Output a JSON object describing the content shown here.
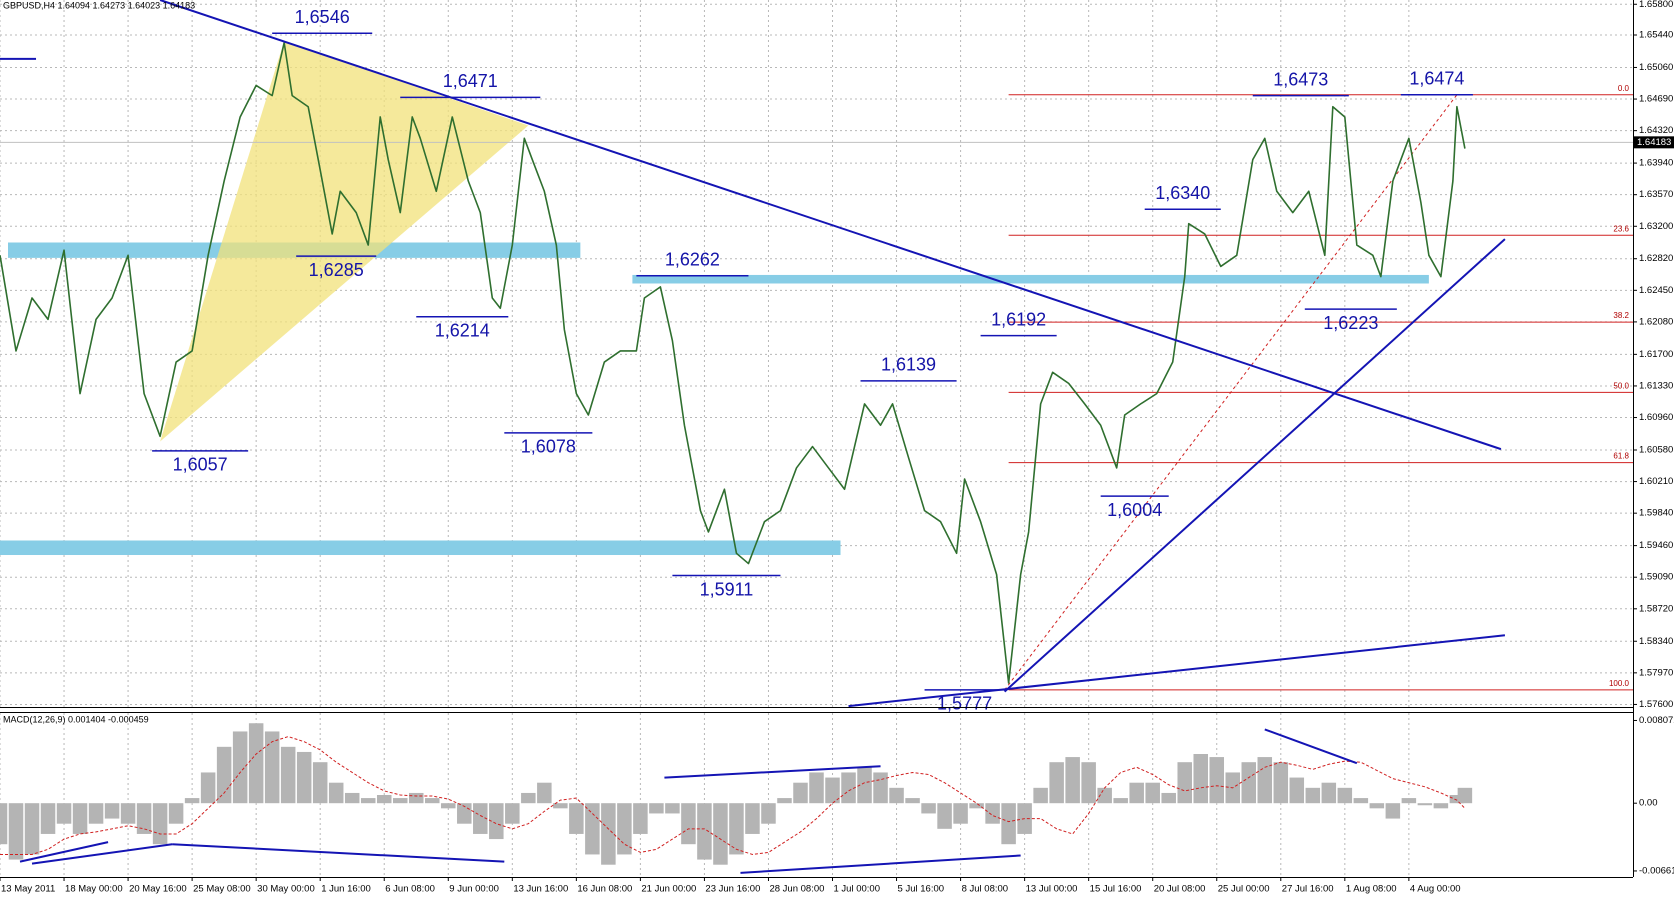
{
  "chart_data": {
    "type": "line",
    "title": "GBPUSD,H4  1.64094 1.64273 1.64023 1.64183",
    "xlim": [
      0,
      408
    ],
    "ylim": [
      1.5757,
      1.6585
    ],
    "grid": true,
    "xticks": [
      {
        "value": 0,
        "label": "13 May 2011"
      },
      {
        "value": 16,
        "label": "18 May 00:00"
      },
      {
        "value": 32,
        "label": "20 May 16:00"
      },
      {
        "value": 48,
        "label": "25 May 08:00"
      },
      {
        "value": 64,
        "label": "30 May 00:00"
      },
      {
        "value": 80,
        "label": "1 Jun 16:00"
      },
      {
        "value": 96,
        "label": "6 Jun 08:00"
      },
      {
        "value": 112,
        "label": "9 Jun 00:00"
      },
      {
        "value": 128,
        "label": "13 Jun 16:00"
      },
      {
        "value": 144,
        "label": "16 Jun 08:00"
      },
      {
        "value": 160,
        "label": "21 Jun 00:00"
      },
      {
        "value": 176,
        "label": "23 Jun 16:00"
      },
      {
        "value": 192,
        "label": "28 Jun 08:00"
      },
      {
        "value": 208,
        "label": "1 Jul 00:00"
      },
      {
        "value": 224,
        "label": "5 Jul 16:00"
      },
      {
        "value": 240,
        "label": "8 Jul 08:00"
      },
      {
        "value": 256,
        "label": "13 Jul 00:00"
      },
      {
        "value": 272,
        "label": "15 Jul 16:00"
      },
      {
        "value": 288,
        "label": "20 Jul 08:00"
      },
      {
        "value": 304,
        "label": "25 Jul 00:00"
      },
      {
        "value": 320,
        "label": "27 Jul 16:00"
      },
      {
        "value": 336,
        "label": "1 Aug 08:00"
      },
      {
        "value": 352,
        "label": "4 Aug 00:00"
      }
    ],
    "yticks": [
      {
        "value": 1.658,
        "label": "1.65800"
      },
      {
        "value": 1.6544,
        "label": "1.65440"
      },
      {
        "value": 1.6506,
        "label": "1.65060"
      },
      {
        "value": 1.6469,
        "label": "1.64690"
      },
      {
        "value": 1.6432,
        "label": "1.64320"
      },
      {
        "value": 1.6394,
        "label": "1.63940"
      },
      {
        "value": 1.6357,
        "label": "1.63570"
      },
      {
        "value": 1.632,
        "label": "1.63200"
      },
      {
        "value": 1.6282,
        "label": "1.62820"
      },
      {
        "value": 1.6245,
        "label": "1.62450"
      },
      {
        "value": 1.6208,
        "label": "1.62080"
      },
      {
        "value": 1.617,
        "label": "1.61700"
      },
      {
        "value": 1.6133,
        "label": "1.61330"
      },
      {
        "value": 1.6096,
        "label": "1.60960"
      },
      {
        "value": 1.6058,
        "label": "1.60580"
      },
      {
        "value": 1.6021,
        "label": "1.60210"
      },
      {
        "value": 1.5984,
        "label": "1.59840"
      },
      {
        "value": 1.5946,
        "label": "1.59460"
      },
      {
        "value": 1.5909,
        "label": "1.59090"
      },
      {
        "value": 1.5872,
        "label": "1.58720"
      },
      {
        "value": 1.5834,
        "label": "1.58340"
      },
      {
        "value": 1.5797,
        "label": "1.57970"
      },
      {
        "value": 1.576,
        "label": "1.57600"
      }
    ],
    "last_price": {
      "value": 1.64183,
      "label": "1.64183"
    },
    "series": [
      {
        "color": "#2f6f2f",
        "x": [
          0,
          4,
          8,
          12,
          16,
          20,
          24,
          28,
          32,
          36,
          40,
          44,
          48,
          52,
          56,
          60,
          64,
          68,
          71,
          73,
          77,
          80,
          83,
          85,
          89,
          92,
          95,
          97,
          100,
          103,
          105,
          109,
          113,
          117,
          120,
          123,
          125,
          128,
          131,
          133,
          136,
          139,
          141,
          144,
          147,
          151,
          155,
          159,
          161,
          165,
          168,
          171,
          175,
          177,
          181,
          184,
          187,
          191,
          195,
          199,
          203,
          207,
          211,
          216,
          220,
          223,
          227,
          231,
          235,
          239,
          241,
          245,
          249,
          252,
          255,
          257,
          260,
          263,
          267,
          271,
          275,
          279,
          281,
          285,
          289,
          293,
          296,
          297,
          301,
          305,
          309,
          313,
          316,
          319,
          323,
          327,
          331,
          333,
          336,
          339,
          343,
          345,
          348,
          352,
          355,
          357,
          360,
          363,
          364,
          366
        ],
        "values": [
          1.6286,
          1.6174,
          1.6236,
          1.6211,
          1.6292,
          1.6124,
          1.6211,
          1.6236,
          1.6286,
          1.6124,
          1.6074,
          1.6161,
          1.6174,
          1.6286,
          1.6373,
          1.6448,
          1.6485,
          1.6473,
          1.6535,
          1.6473,
          1.646,
          1.6386,
          1.6311,
          1.6361,
          1.6336,
          1.6298,
          1.6448,
          1.6398,
          1.6336,
          1.6448,
          1.6423,
          1.6361,
          1.6448,
          1.6373,
          1.6336,
          1.6236,
          1.6224,
          1.6298,
          1.6423,
          1.6398,
          1.6361,
          1.6298,
          1.6199,
          1.6124,
          1.6099,
          1.6161,
          1.6174,
          1.6174,
          1.6236,
          1.6249,
          1.6186,
          1.6087,
          1.5987,
          1.5962,
          1.6012,
          1.5937,
          1.5925,
          1.5974,
          1.5987,
          1.6037,
          1.6062,
          1.6037,
          1.6012,
          1.6112,
          1.6087,
          1.6112,
          1.6049,
          1.5987,
          1.5974,
          1.5937,
          1.6024,
          1.5974,
          1.5912,
          1.5785,
          1.5912,
          1.5962,
          1.6112,
          1.6149,
          1.6136,
          1.6112,
          1.6087,
          1.6037,
          1.6099,
          1.6112,
          1.6124,
          1.6161,
          1.6261,
          1.6323,
          1.6311,
          1.6273,
          1.6286,
          1.6398,
          1.6423,
          1.6361,
          1.6336,
          1.6361,
          1.6286,
          1.646,
          1.6448,
          1.6298,
          1.6286,
          1.6261,
          1.6373,
          1.6423,
          1.6348,
          1.6286,
          1.6261,
          1.6373,
          1.646,
          1.6411
        ]
      }
    ],
    "swing_highs": [
      {
        "label": "1,6546",
        "value": 1.6546,
        "x": [
          68,
          93
        ]
      },
      {
        "label": "1,6471",
        "value": 1.6471,
        "x": [
          100,
          135
        ]
      },
      {
        "label": "1,6262",
        "value": 1.6262,
        "x": [
          159,
          187
        ]
      },
      {
        "label": "1,6139",
        "value": 1.6139,
        "x": [
          215,
          239
        ]
      },
      {
        "label": "1,6192",
        "value": 1.6192,
        "x": [
          245,
          264
        ]
      },
      {
        "label": "1,6340",
        "value": 1.634,
        "x": [
          286,
          305
        ]
      },
      {
        "label": "1,6473",
        "value": 1.6473,
        "x": [
          313,
          337
        ]
      },
      {
        "label": "1,6474",
        "value": 1.6474,
        "x": [
          350,
          368
        ]
      }
    ],
    "swing_lows": [
      {
        "label": "1,6057",
        "value": 1.6057,
        "x": [
          38,
          62
        ]
      },
      {
        "label": "1,6285",
        "value": 1.6285,
        "x": [
          74,
          94
        ]
      },
      {
        "label": "1,6214",
        "value": 1.6214,
        "x": [
          104,
          127
        ]
      },
      {
        "label": "1,6078",
        "value": 1.6078,
        "x": [
          126,
          148
        ]
      },
      {
        "label": "1,5911",
        "value": 1.5911,
        "x": [
          168,
          195
        ]
      },
      {
        "label": "1,5777",
        "value": 1.5777,
        "x": [
          231,
          251
        ]
      },
      {
        "label": "1,6004",
        "value": 1.6004,
        "x": [
          275,
          292
        ]
      },
      {
        "label": "1,6223",
        "value": 1.6223,
        "x": [
          326,
          349
        ]
      }
    ],
    "zones": [
      {
        "from": 1.6283,
        "to": 1.6301,
        "x": [
          2,
          145
        ]
      },
      {
        "from": 1.6253,
        "to": 1.6263,
        "x": [
          158,
          357
        ]
      },
      {
        "from": 1.5935,
        "to": 1.5952,
        "x": [
          0,
          210
        ]
      }
    ],
    "triangle": {
      "x": [
        40,
        71,
        132
      ],
      "y": [
        1.6068,
        1.6537,
        1.6438
      ]
    },
    "trendlines": [
      {
        "x": [
          40,
          375
        ],
        "y": [
          1.6585,
          1.6059
        ]
      },
      {
        "x": [
          251,
          376
        ],
        "y": [
          1.5775,
          1.6305
        ]
      },
      {
        "x": [
          212,
          376
        ],
        "y": [
          1.5758,
          1.5841
        ]
      },
      {
        "x": [
          0,
          9
        ],
        "y": [
          1.6516,
          1.6516
        ]
      }
    ],
    "fibonacci": {
      "high": 1.6474,
      "low": 1.5777,
      "x": [
        252,
        408
      ],
      "diagonal_x": [
        251,
        364
      ],
      "levels": [
        {
          "value": 0,
          "label": "0.0"
        },
        {
          "value": 23.6,
          "label": "23.6"
        },
        {
          "value": 38.2,
          "label": "38.2"
        },
        {
          "value": 50,
          "label": "50.0"
        },
        {
          "value": 61.8,
          "label": "61.8"
        },
        {
          "value": 100,
          "label": "100.0"
        }
      ]
    },
    "macd": {
      "title": "MACD(12,26,9) 0.001404 -0.000459",
      "ylim": [
        -0.0072,
        0.0088
      ],
      "yticks": [
        0.008072,
        {
          "value": 0,
          "label": "0.00"
        },
        -0.00661
      ],
      "x": [
        0,
        4,
        8,
        12,
        16,
        20,
        24,
        28,
        32,
        36,
        40,
        44,
        48,
        52,
        56,
        60,
        64,
        68,
        72,
        76,
        80,
        84,
        88,
        92,
        96,
        100,
        104,
        108,
        112,
        116,
        120,
        124,
        128,
        132,
        136,
        140,
        144,
        148,
        152,
        156,
        160,
        164,
        168,
        172,
        176,
        180,
        184,
        188,
        192,
        196,
        200,
        204,
        208,
        212,
        216,
        220,
        224,
        228,
        232,
        236,
        240,
        244,
        248,
        252,
        256,
        260,
        264,
        268,
        272,
        276,
        280,
        284,
        288,
        292,
        296,
        300,
        304,
        308,
        312,
        316,
        320,
        324,
        328,
        332,
        336,
        340,
        344,
        348,
        352,
        356,
        360,
        364,
        366
      ],
      "histogram": [
        -0.004,
        -0.0055,
        -0.005,
        -0.003,
        -0.002,
        -0.003,
        -0.002,
        -0.0015,
        -0.002,
        -0.003,
        -0.004,
        -0.002,
        0.0005,
        0.003,
        0.0055,
        0.007,
        0.0078,
        0.007,
        0.0055,
        0.005,
        0.004,
        0.002,
        0.001,
        0.0005,
        0.0008,
        0.0005,
        0.001,
        0.0005,
        -0.0005,
        -0.002,
        -0.003,
        -0.0035,
        -0.002,
        0.001,
        0.002,
        -0.0005,
        -0.003,
        -0.005,
        -0.006,
        -0.005,
        -0.003,
        -0.001,
        -0.001,
        -0.004,
        -0.0055,
        -0.006,
        -0.005,
        -0.003,
        -0.002,
        0.0005,
        0.002,
        0.003,
        0.0025,
        0.003,
        0.0035,
        0.003,
        0.0015,
        0.0005,
        -0.001,
        -0.0025,
        -0.002,
        -0.0005,
        -0.002,
        -0.004,
        -0.003,
        0.0015,
        0.004,
        0.0045,
        0.004,
        0.0015,
        0.0005,
        0.002,
        0.002,
        0.001,
        0.004,
        0.0048,
        0.0045,
        0.003,
        0.004,
        0.0045,
        0.004,
        0.0025,
        0.0015,
        0.002,
        0.0015,
        0.0005,
        -0.0005,
        -0.0015,
        0.0005,
        -0.0002,
        -0.0005,
        0.0008,
        0.0015
      ],
      "signal": [
        -0.005,
        -0.005,
        -0.005,
        -0.0045,
        -0.0035,
        -0.003,
        -0.0028,
        -0.0025,
        -0.0022,
        -0.0025,
        -0.003,
        -0.003,
        -0.002,
        -0.0005,
        0.001,
        0.003,
        0.0048,
        0.006,
        0.0065,
        0.006,
        0.0052,
        0.004,
        0.003,
        0.002,
        0.0012,
        0.0008,
        0.0007,
        0.0007,
        0.0004,
        -0.0003,
        -0.0012,
        -0.002,
        -0.0025,
        -0.002,
        -0.0008,
        0.0003,
        0.0005,
        -0.001,
        -0.0025,
        -0.004,
        -0.0048,
        -0.0045,
        -0.0035,
        -0.0025,
        -0.0025,
        -0.0035,
        -0.0045,
        -0.005,
        -0.0048,
        -0.0038,
        -0.0028,
        -0.0015,
        0,
        0.0012,
        0.002,
        0.0023,
        0.0027,
        0.003,
        0.0028,
        0.002,
        0.001,
        0,
        -0.0012,
        -0.0018,
        -0.0015,
        -0.0015,
        -0.0025,
        -0.003,
        -0.001,
        0.0015,
        0.003,
        0.0035,
        0.0028,
        0.0018,
        0.0012,
        0.0015,
        0.0017,
        0.0015,
        0.0025,
        0.0035,
        0.004,
        0.0037,
        0.0033,
        0.0038,
        0.0041,
        0.004,
        0.0032,
        0.0024,
        0.002,
        0.0016,
        0.001,
        0.0003,
        -0.0005
      ],
      "trendlines": [
        {
          "x": [
            5,
            27
          ],
          "y": [
            -0.0057,
            -0.0038
          ]
        },
        {
          "x": [
            8,
            43
          ],
          "y": [
            -0.0059,
            -0.004
          ]
        },
        {
          "x": [
            43,
            126
          ],
          "y": [
            -0.004,
            -0.0057
          ]
        },
        {
          "x": [
            166,
            220
          ],
          "y": [
            0.0025,
            0.0036
          ]
        },
        {
          "x": [
            185,
            255
          ],
          "y": [
            -0.0068,
            -0.0051
          ]
        },
        {
          "x": [
            316,
            339
          ],
          "y": [
            0.0072,
            0.0039
          ]
        }
      ]
    }
  }
}
